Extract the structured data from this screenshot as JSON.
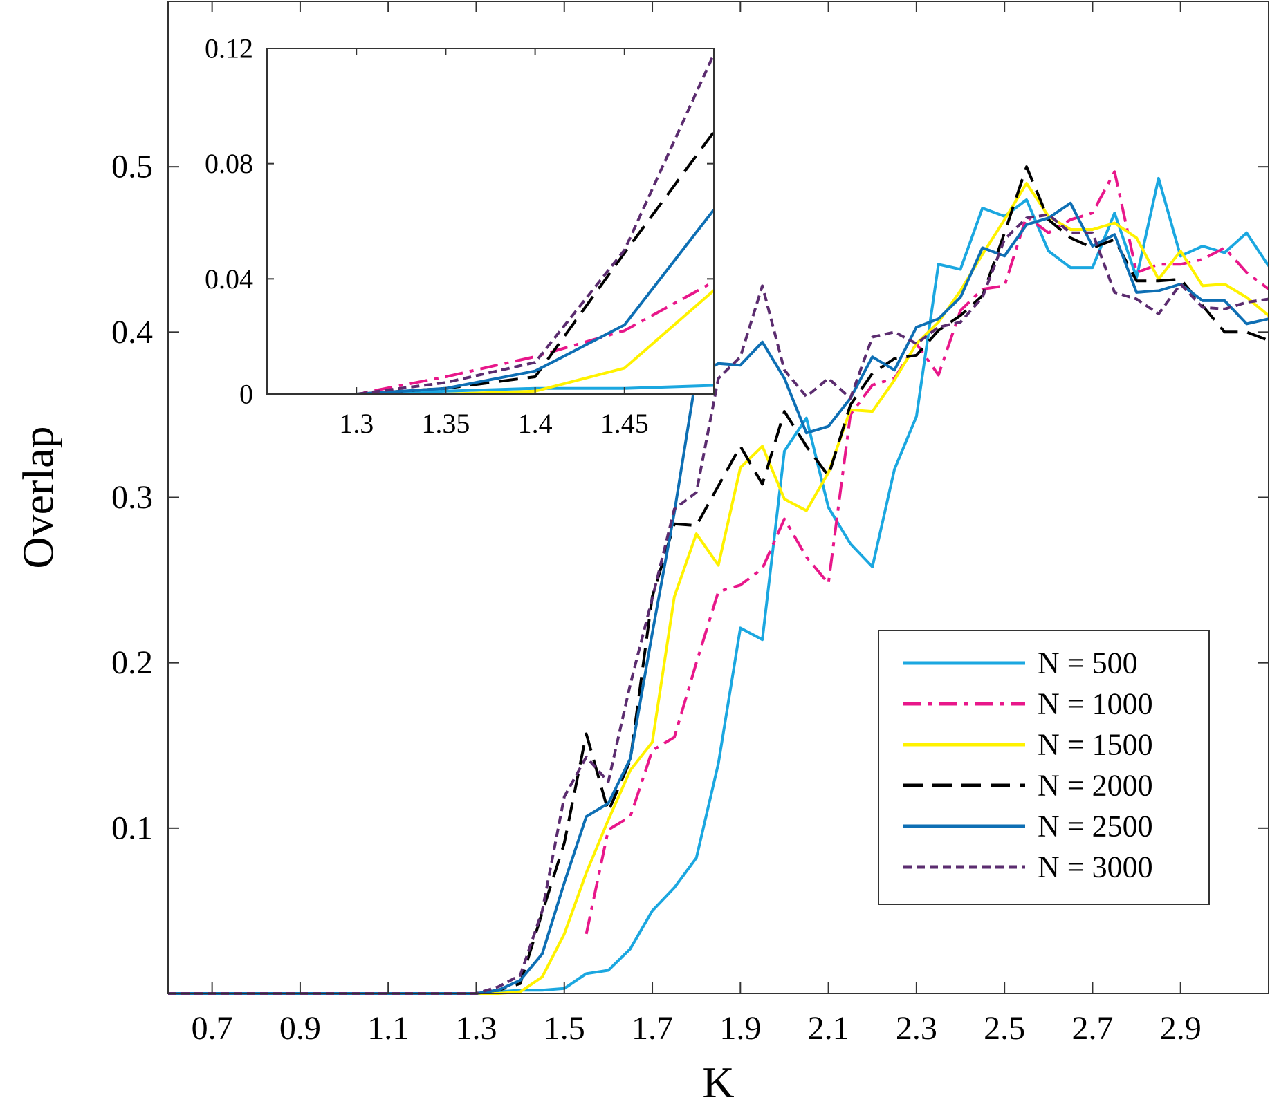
{
  "chart_data": [
    {
      "type": "line",
      "title": "",
      "xlabel": "K",
      "ylabel": "Overlap",
      "xlim": [
        0.6,
        3.1
      ],
      "ylim": [
        0,
        0.6
      ],
      "xticks": [
        0.7,
        0.9,
        1.1,
        1.3,
        1.5,
        1.7,
        1.9,
        2.1,
        2.3,
        2.5,
        2.7,
        2.9
      ],
      "xtick_labels": [
        "0.7",
        "0.9",
        "1.1",
        "1.3",
        "1.5",
        "1.7",
        "1.9",
        "2.1",
        "2.3",
        "2.5",
        "2.7",
        "2.9"
      ],
      "yticks": [
        0.1,
        0.2,
        0.3,
        0.4,
        0.5
      ],
      "ytick_labels": [
        "0.1",
        "0.2",
        "0.3",
        "0.4",
        "0.5"
      ],
      "grid": false,
      "legend_position": "lower-right",
      "series": [
        {
          "name": "N = 500",
          "color": "#1ba7e0",
          "dash": "solid",
          "x": [
            0.6,
            0.7,
            0.8,
            0.9,
            1.0,
            1.1,
            1.2,
            1.3,
            1.35,
            1.4,
            1.45,
            1.5,
            1.55,
            1.6,
            1.65,
            1.7,
            1.75,
            1.8,
            1.85,
            1.9,
            1.95,
            2.0,
            2.05,
            2.1,
            2.15,
            2.2,
            2.25,
            2.3,
            2.35,
            2.4,
            2.45,
            2.5,
            2.55,
            2.6,
            2.65,
            2.7,
            2.75,
            2.8,
            2.85,
            2.9,
            2.95,
            3.0,
            3.05,
            3.1
          ],
          "y": [
            0,
            0,
            0,
            0,
            0,
            0,
            0,
            0,
            0.001,
            0.002,
            0.002,
            0.003,
            0.012,
            0.014,
            0.027,
            0.05,
            0.064,
            0.082,
            0.139,
            0.221,
            0.214,
            0.328,
            0.348,
            0.294,
            0.272,
            0.258,
            0.317,
            0.349,
            0.441,
            0.438,
            0.475,
            0.47,
            0.48,
            0.449,
            0.439,
            0.439,
            0.472,
            0.433,
            0.493,
            0.446,
            0.452,
            0.448,
            0.46,
            0.44
          ]
        },
        {
          "name": "N = 1000",
          "color": "#e8178a",
          "dash": "dashdot",
          "x": [
            1.55,
            1.6,
            1.65,
            1.7,
            1.75,
            1.8,
            1.85,
            1.9,
            1.95,
            2.0,
            2.05,
            2.1,
            2.15,
            2.2,
            2.25,
            2.3,
            2.35,
            2.4,
            2.45,
            2.5,
            2.55,
            2.6,
            2.65,
            2.7,
            2.75,
            2.8,
            2.85,
            2.9,
            2.95,
            3.0,
            3.05,
            3.1
          ],
          "y": [
            0.036,
            0.099,
            0.107,
            0.147,
            0.155,
            0.2,
            0.243,
            0.247,
            0.257,
            0.287,
            0.264,
            0.248,
            0.35,
            0.368,
            0.372,
            0.393,
            0.374,
            0.413,
            0.426,
            0.428,
            0.47,
            0.46,
            0.468,
            0.472,
            0.497,
            0.436,
            0.441,
            0.441,
            0.444,
            0.451,
            0.436,
            0.426
          ]
        },
        {
          "name": "N = 1500",
          "color": "#fff200",
          "dash": "solid",
          "x": [
            0.6,
            0.7,
            0.8,
            0.9,
            1.0,
            1.1,
            1.2,
            1.3,
            1.35,
            1.4,
            1.45,
            1.5,
            1.55,
            1.6,
            1.65,
            1.7,
            1.75,
            1.8,
            1.85,
            1.9,
            1.95,
            2.0,
            2.05,
            2.1,
            2.15,
            2.2,
            2.25,
            2.3,
            2.35,
            2.4,
            2.45,
            2.5,
            2.55,
            2.6,
            2.65,
            2.7,
            2.75,
            2.8,
            2.85,
            2.9,
            2.95,
            3.0,
            3.05,
            3.1
          ],
          "y": [
            0,
            0,
            0,
            0,
            0,
            0,
            0,
            0,
            0,
            0.001,
            0.01,
            0.036,
            0.073,
            0.105,
            0.135,
            0.152,
            0.24,
            0.278,
            0.259,
            0.318,
            0.331,
            0.299,
            0.292,
            0.315,
            0.353,
            0.352,
            0.371,
            0.393,
            0.406,
            0.425,
            0.447,
            0.468,
            0.49,
            0.47,
            0.462,
            0.462,
            0.466,
            0.457,
            0.432,
            0.449,
            0.428,
            0.429,
            0.421,
            0.41
          ]
        },
        {
          "name": "N = 2000",
          "color": "#000000",
          "dash": "dash",
          "x": [
            0.6,
            0.7,
            0.8,
            0.9,
            1.0,
            1.1,
            1.2,
            1.3,
            1.35,
            1.4,
            1.45,
            1.5,
            1.55,
            1.6,
            1.65,
            1.7,
            1.75,
            1.8,
            1.85,
            1.9,
            1.95,
            2.0,
            2.05,
            2.1,
            2.15,
            2.2,
            2.25,
            2.3,
            2.35,
            2.4,
            2.45,
            2.5,
            2.55,
            2.6,
            2.65,
            2.7,
            2.75,
            2.8,
            2.85,
            2.9,
            2.95,
            3.0,
            3.05,
            3.1
          ],
          "y": [
            0,
            0,
            0,
            0,
            0,
            0,
            0,
            0,
            0.002,
            0.006,
            0.049,
            0.091,
            0.157,
            0.11,
            0.141,
            0.24,
            0.284,
            0.283,
            0.307,
            0.331,
            0.308,
            0.352,
            0.331,
            0.313,
            0.356,
            0.375,
            0.384,
            0.386,
            0.401,
            0.41,
            0.422,
            0.46,
            0.5,
            0.468,
            0.457,
            0.451,
            0.456,
            0.431,
            0.431,
            0.432,
            0.416,
            0.4,
            0.4,
            0.395
          ]
        },
        {
          "name": "N = 2500",
          "color": "#0e6fb4",
          "dash": "solid",
          "x": [
            0.6,
            0.7,
            0.8,
            0.9,
            1.0,
            1.1,
            1.2,
            1.3,
            1.35,
            1.4,
            1.45,
            1.5,
            1.55,
            1.6,
            1.65,
            1.7,
            1.75,
            1.8,
            1.85,
            1.9,
            1.95,
            2.0,
            2.05,
            2.1,
            2.15,
            2.2,
            2.25,
            2.3,
            2.35,
            2.4,
            2.45,
            2.5,
            2.55,
            2.6,
            2.65,
            2.7,
            2.75,
            2.8,
            2.85,
            2.9,
            2.95,
            3.0,
            3.05,
            3.1
          ],
          "y": [
            0,
            0,
            0,
            0,
            0,
            0,
            0,
            0,
            0.002,
            0.008,
            0.024,
            0.067,
            0.107,
            0.115,
            0.142,
            0.218,
            0.291,
            0.374,
            0.381,
            0.38,
            0.394,
            0.372,
            0.339,
            0.343,
            0.36,
            0.385,
            0.377,
            0.403,
            0.408,
            0.421,
            0.451,
            0.446,
            0.465,
            0.469,
            0.478,
            0.452,
            0.459,
            0.424,
            0.425,
            0.429,
            0.419,
            0.419,
            0.405,
            0.408
          ]
        },
        {
          "name": "N = 3000",
          "color": "#5b2c6f",
          "dash": "dotdash",
          "x": [
            0.6,
            0.7,
            0.8,
            0.9,
            1.0,
            1.1,
            1.2,
            1.3,
            1.35,
            1.4,
            1.45,
            1.5,
            1.55,
            1.6,
            1.65,
            1.7,
            1.75,
            1.8,
            1.85,
            1.9,
            1.95,
            2.0,
            2.05,
            2.1,
            2.15,
            2.2,
            2.25,
            2.3,
            2.35,
            2.4,
            2.45,
            2.5,
            2.55,
            2.6,
            2.65,
            2.7,
            2.75,
            2.8,
            2.85,
            2.9,
            2.95,
            3.0,
            3.05,
            3.1
          ],
          "y": [
            0,
            0,
            0,
            0,
            0,
            0,
            0,
            0,
            0.004,
            0.011,
            0.05,
            0.119,
            0.143,
            0.128,
            0.187,
            0.239,
            0.293,
            0.303,
            0.372,
            0.385,
            0.428,
            0.377,
            0.361,
            0.372,
            0.36,
            0.397,
            0.4,
            0.393,
            0.403,
            0.406,
            0.421,
            0.456,
            0.469,
            0.471,
            0.46,
            0.46,
            0.424,
            0.42,
            0.411,
            0.429,
            0.415,
            0.414,
            0.418,
            0.42
          ]
        }
      ]
    },
    {
      "type": "line",
      "title": "",
      "xlabel": "",
      "ylabel": "",
      "xlim": [
        1.25,
        1.5
      ],
      "ylim": [
        0,
        0.12
      ],
      "xticks": [
        1.3,
        1.35,
        1.4,
        1.45
      ],
      "xtick_labels": [
        "1.3",
        "1.35",
        "1.4",
        "1.45"
      ],
      "yticks": [
        0,
        0.04,
        0.08,
        0.12
      ],
      "ytick_labels": [
        "0",
        "0.04",
        "0.08",
        "0.12"
      ],
      "grid": false,
      "series": [
        {
          "name": "N = 500",
          "color": "#1ba7e0",
          "dash": "solid",
          "x": [
            1.25,
            1.3,
            1.35,
            1.4,
            1.45,
            1.5
          ],
          "y": [
            0,
            0,
            0.001,
            0.002,
            0.002,
            0.003
          ]
        },
        {
          "name": "N = 1000",
          "color": "#e8178a",
          "dash": "dashdot",
          "x": [
            1.25,
            1.3,
            1.35,
            1.4,
            1.45,
            1.5
          ],
          "y": [
            0,
            0,
            0.006,
            0.013,
            0.022,
            0.039
          ]
        },
        {
          "name": "N = 1500",
          "color": "#fff200",
          "dash": "solid",
          "x": [
            1.25,
            1.3,
            1.35,
            1.4,
            1.45,
            1.5
          ],
          "y": [
            0,
            0,
            0,
            0.001,
            0.009,
            0.036
          ]
        },
        {
          "name": "N = 2000",
          "color": "#000000",
          "dash": "dash",
          "x": [
            1.25,
            1.3,
            1.35,
            1.4,
            1.45,
            1.5
          ],
          "y": [
            0,
            0,
            0.002,
            0.006,
            0.049,
            0.091
          ]
        },
        {
          "name": "N = 2500",
          "color": "#0e6fb4",
          "dash": "solid",
          "x": [
            1.25,
            1.3,
            1.35,
            1.4,
            1.45,
            1.5
          ],
          "y": [
            0,
            0,
            0.002,
            0.008,
            0.024,
            0.064
          ]
        },
        {
          "name": "N = 3000",
          "color": "#5b2c6f",
          "dash": "dotdash",
          "x": [
            1.25,
            1.3,
            1.35,
            1.4,
            1.45,
            1.5
          ],
          "y": [
            0,
            0,
            0.004,
            0.011,
            0.05,
            0.118
          ]
        }
      ]
    }
  ]
}
